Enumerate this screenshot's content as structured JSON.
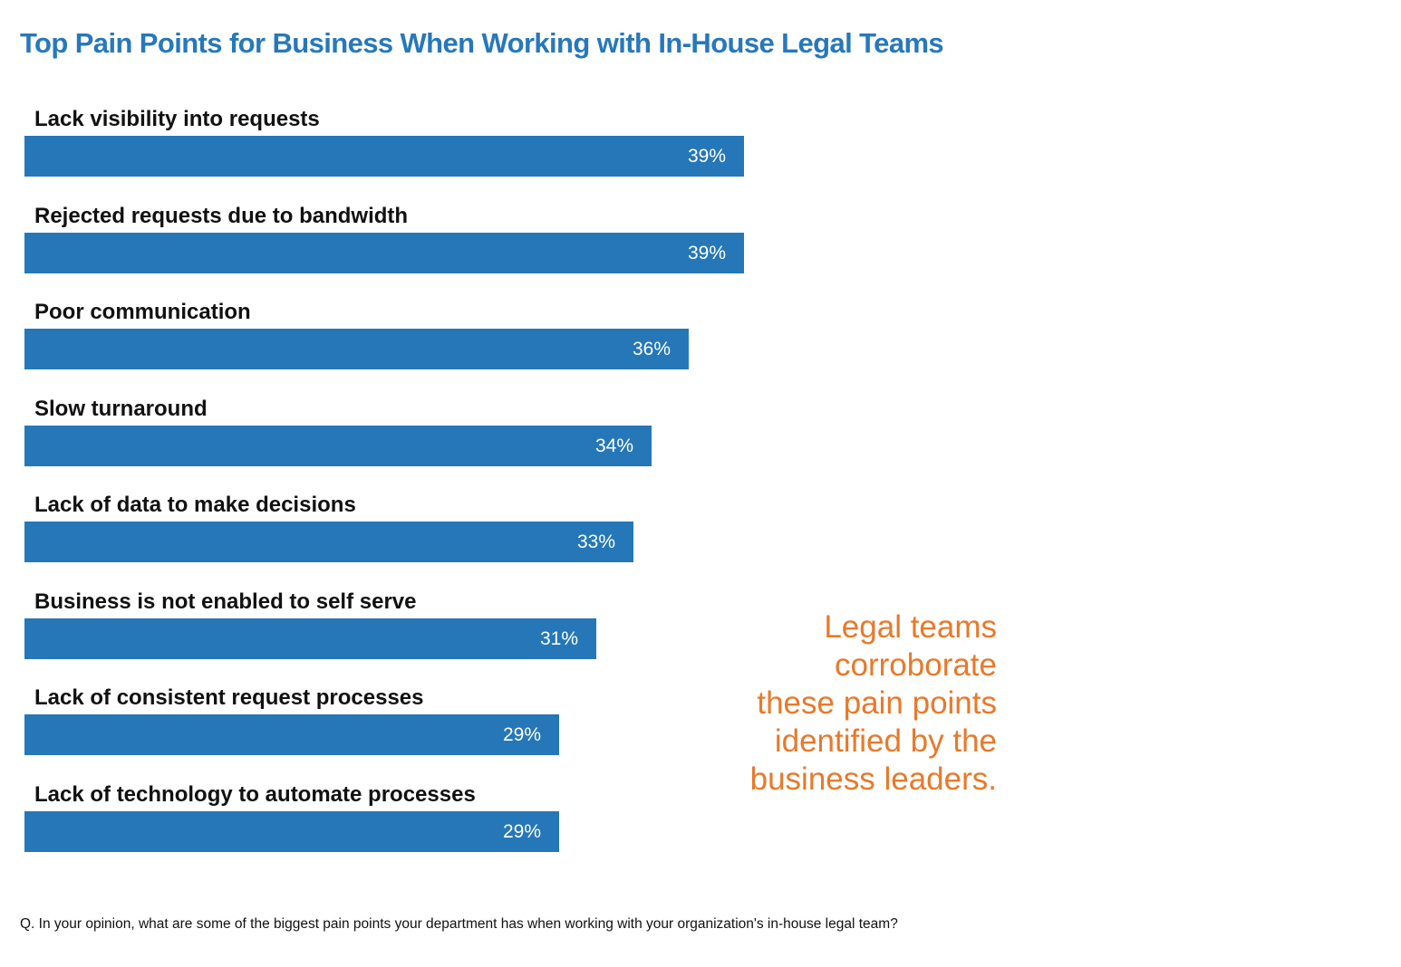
{
  "title": "Top Pain Points for Business When Working with In-House Legal Teams",
  "callout": {
    "lines": [
      "Legal teams",
      "corroborate",
      "these pain points",
      "identified by the",
      "business leaders."
    ]
  },
  "footnote": "Q. In your opinion, what are some of the biggest pain points your department has when working with your organization's in-house legal team?",
  "colors": {
    "title": "#2778bb",
    "bar": "#2577b8",
    "bar_text": "#ffffff",
    "callout": "#e8792a",
    "label": "#111111"
  },
  "chart_data": {
    "type": "bar",
    "orientation": "horizontal",
    "title": "Top Pain Points for Business When Working with In-House Legal Teams",
    "categories": [
      "Lack visibility into requests",
      "Rejected requests due to bandwidth",
      "Poor communication",
      "Slow turnaround",
      "Lack of data to make decisions",
      "Business is not enabled to self serve",
      "Lack of consistent request processes",
      "Lack of technology to automate processes"
    ],
    "values": [
      39,
      39,
      36,
      34,
      33,
      31,
      29,
      29
    ],
    "value_labels": [
      "39%",
      "39%",
      "36%",
      "34%",
      "33%",
      "31%",
      "29%",
      "29%"
    ],
    "unit": "%",
    "grid": false,
    "legend": false
  }
}
